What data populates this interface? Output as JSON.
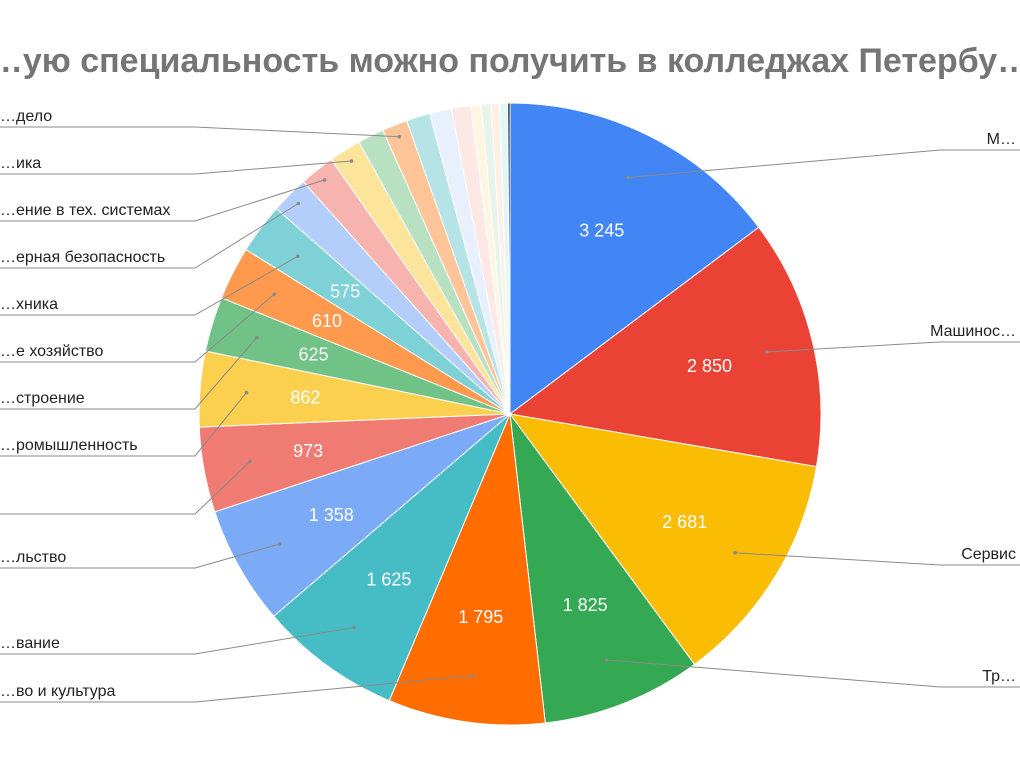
{
  "chart_data": {
    "type": "pie",
    "title": "…ую специальность можно получить в колледжах Петербу…",
    "legend": "none",
    "slices": [
      {
        "label": "М…",
        "value": 3245,
        "value_label": "3 245",
        "color": "#4285f4"
      },
      {
        "label": "Машинос…",
        "value": 2850,
        "value_label": "2 850",
        "color": "#ea4335"
      },
      {
        "label": "Сервис",
        "value": 2681,
        "value_label": "2 681",
        "color": "#fbbc04"
      },
      {
        "label": "Тр…",
        "value": 1825,
        "value_label": "1 825",
        "color": "#34a853"
      },
      {
        "label": "…во и культура",
        "value": 1795,
        "value_label": "1 795",
        "color": "#ff6d01"
      },
      {
        "label": "…вание",
        "value": 1625,
        "value_label": "1 625",
        "color": "#46bdc6"
      },
      {
        "label": "…льство",
        "value": 1358,
        "value_label": "1 358",
        "color": "#7baaf7"
      },
      {
        "label": "",
        "value": 973,
        "value_label": "973",
        "color": "#f07b72"
      },
      {
        "label": "…ромышленность",
        "value": 862,
        "value_label": "862",
        "color": "#fcd04f"
      },
      {
        "label": "…строение",
        "value": 625,
        "value_label": "625",
        "color": "#71c287"
      },
      {
        "label": "…е хозяйство",
        "value": 610,
        "value_label": "610",
        "color": "#ff994d"
      },
      {
        "label": "…хника",
        "value": 575,
        "value_label": "575",
        "color": "#7ed1d7"
      },
      {
        "label": "…ерная безопасность",
        "value": 430,
        "value_label": "",
        "color": "#b3cefb"
      },
      {
        "label": "…ение в тех. системах",
        "value": 400,
        "value_label": "",
        "color": "#f7b4ae"
      },
      {
        "label": "…ика",
        "value": 370,
        "value_label": "",
        "color": "#fde49b"
      },
      {
        "label": "",
        "value": 300,
        "value_label": "",
        "color": "#b7e1c1"
      },
      {
        "label": "…дело",
        "value": 290,
        "value_label": "",
        "color": "#ffc599"
      },
      {
        "label": "",
        "value": 270,
        "value_label": "",
        "color": "#b5e3e6"
      },
      {
        "label": "",
        "value": 250,
        "value_label": "",
        "color": "#e8f0fe"
      },
      {
        "label": "",
        "value": 220,
        "value_label": "",
        "color": "#fde8e6"
      },
      {
        "label": "",
        "value": 120,
        "value_label": "",
        "color": "#fef6e0"
      },
      {
        "label": "",
        "value": 110,
        "value_label": "",
        "color": "#e6f4ea"
      },
      {
        "label": "",
        "value": 100,
        "value_label": "",
        "color": "#fff0e6"
      },
      {
        "label": "",
        "value": 90,
        "value_label": "",
        "color": "#e0f7f9"
      },
      {
        "label": "",
        "value": 25,
        "value_label": "",
        "color": "#000000"
      }
    ]
  }
}
